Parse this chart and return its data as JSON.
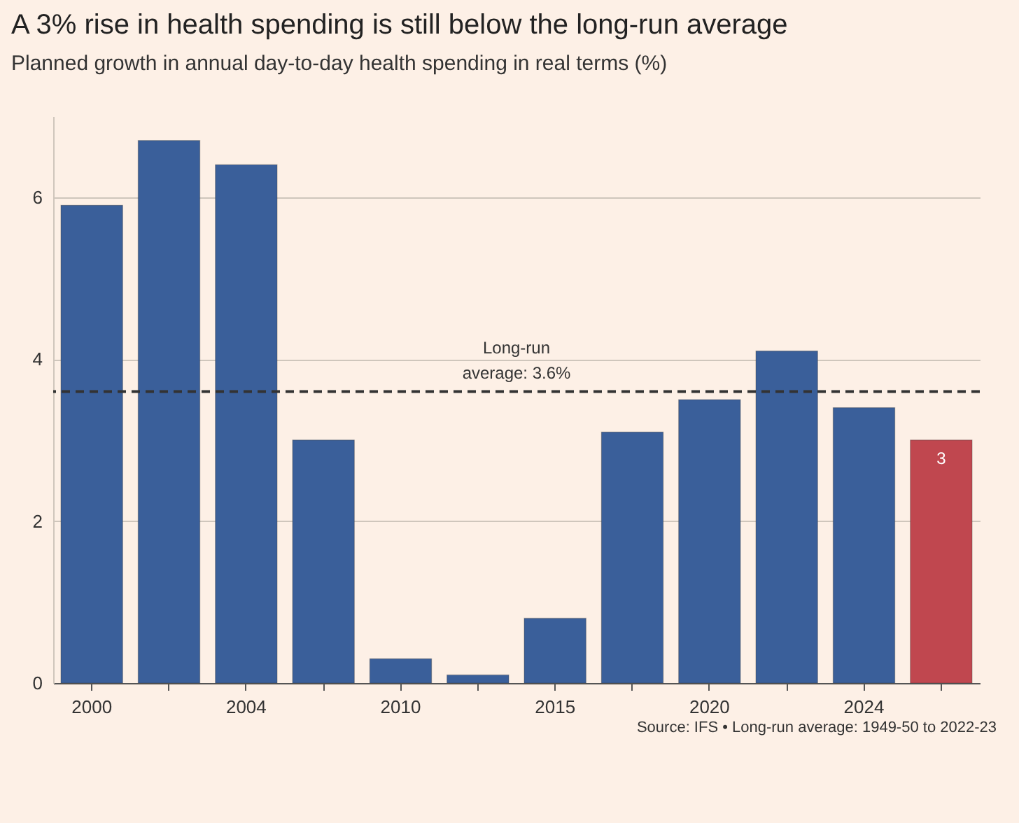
{
  "chart_data": {
    "type": "bar",
    "title": "A 3% rise in health spending is still below the long-run average",
    "subtitle": "Planned growth in annual day-to-day health spending in real terms (%)",
    "categories": [
      "2000",
      null,
      "2004",
      null,
      "2010",
      null,
      "2015",
      null,
      "2020",
      null,
      "2024",
      null
    ],
    "values": [
      5.9,
      6.7,
      6.4,
      3.0,
      0.3,
      0.1,
      0.8,
      3.1,
      3.5,
      4.1,
      3.4,
      3.0
    ],
    "colors": [
      "#3a5f9a",
      "#3a5f9a",
      "#3a5f9a",
      "#3a5f9a",
      "#3a5f9a",
      "#3a5f9a",
      "#3a5f9a",
      "#3a5f9a",
      "#3a5f9a",
      "#3a5f9a",
      "#3a5f9a",
      "#c0474f"
    ],
    "value_labels": [
      null,
      null,
      null,
      null,
      null,
      null,
      null,
      null,
      null,
      null,
      null,
      "3"
    ],
    "ylim": [
      0,
      7
    ],
    "yticks": [
      0,
      2,
      4,
      6
    ],
    "grid": "y",
    "ref_lines": [
      {
        "axis": "y",
        "value": 3.6,
        "label": "Long-run average: 3.6%",
        "line_style": "dashed",
        "color": "#333333"
      }
    ],
    "annotations": [
      "Source: IFS • Long-run average: 1949-50 to 2022-23"
    ]
  }
}
